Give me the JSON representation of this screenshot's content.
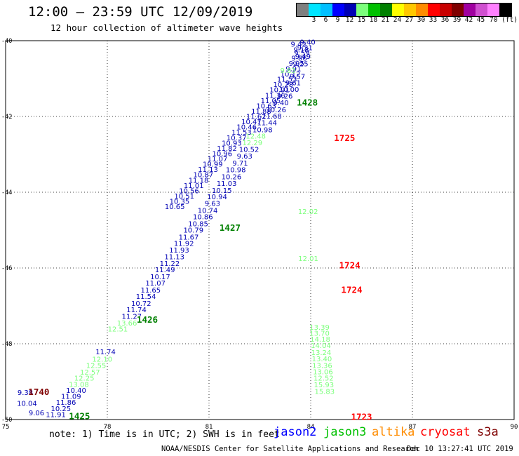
{
  "header": {
    "title": "12:00 – 23:59 UTC 12/09/2019",
    "subtitle": "12 hour collection of altimeter wave heights"
  },
  "legend": {
    "colors": [
      "#7f7f7f",
      "#00e5ff",
      "#00bfff",
      "#0000ff",
      "#0000b4",
      "#7cff7c",
      "#00c000",
      "#008000",
      "#ffff00",
      "#ffc800",
      "#ff8c00",
      "#ff0000",
      "#c80000",
      "#7f0000",
      "#a000a0",
      "#d050d0",
      "#ff80ff",
      "#000000"
    ],
    "labels": [
      "3",
      "6",
      "9",
      "12",
      "15",
      "18",
      "21",
      "24",
      "27",
      "30",
      "33",
      "36",
      "39",
      "42",
      "45",
      "70 (ft)"
    ]
  },
  "chart_data": {
    "type": "scatter",
    "xlim": [
      75,
      90
    ],
    "ylim": [
      -50,
      -40
    ],
    "x_ticks": [
      "75",
      "78",
      "81",
      "84",
      "87",
      "90"
    ],
    "y_ticks": [
      "-40",
      "-42",
      "-44",
      "-46",
      "-48",
      "-50"
    ],
    "grid": true,
    "point_colors": {
      "jason2": "#0000b4",
      "jason3": "#7cff7c",
      "cryosat": "#ff0000"
    },
    "tracks": [
      {
        "name": "jason2",
        "points": [
          {
            "x": 83.91,
            "y": -40.05,
            "v": "9.40"
          },
          {
            "x": 83.83,
            "y": -40.19,
            "v": "9.31"
          },
          {
            "x": 83.74,
            "y": -40.33,
            "v": "9.59"
          },
          {
            "x": 83.66,
            "y": -40.47,
            "v": "9.86"
          },
          {
            "x": 83.58,
            "y": -40.61,
            "v": "9.95"
          },
          {
            "x": 83.49,
            "y": -40.75,
            "v": "9.91"
          },
          {
            "x": 83.4,
            "y": -40.89,
            "v": "10.12"
          },
          {
            "x": 83.3,
            "y": -41.03,
            "v": "11.53"
          },
          {
            "x": 83.19,
            "y": -41.17,
            "v": "10.28"
          },
          {
            "x": 83.08,
            "y": -41.31,
            "v": "10.91"
          },
          {
            "x": 82.95,
            "y": -41.45,
            "v": "11.36"
          },
          {
            "x": 82.82,
            "y": -41.59,
            "v": "11.05"
          },
          {
            "x": 82.69,
            "y": -41.73,
            "v": "10.63"
          },
          {
            "x": 82.54,
            "y": -41.87,
            "v": "11.88"
          },
          {
            "x": 82.39,
            "y": -42.01,
            "v": "11.62"
          },
          {
            "x": 82.25,
            "y": -42.15,
            "v": "10.47"
          },
          {
            "x": 82.11,
            "y": -42.29,
            "v": "10.46"
          },
          {
            "x": 81.96,
            "y": -42.43,
            "v": "11.53"
          },
          {
            "x": 81.81,
            "y": -42.57,
            "v": "10.37"
          },
          {
            "x": 81.67,
            "y": -42.71,
            "v": "10.93"
          },
          {
            "x": 81.53,
            "y": -42.85,
            "v": "11.82"
          },
          {
            "x": 81.39,
            "y": -42.99,
            "v": "10.96"
          },
          {
            "x": 81.25,
            "y": -43.13,
            "v": "11.07"
          },
          {
            "x": 81.11,
            "y": -43.27,
            "v": "10.99"
          },
          {
            "x": 80.97,
            "y": -43.41,
            "v": "11.13"
          },
          {
            "x": 80.83,
            "y": -43.55,
            "v": "10.87"
          },
          {
            "x": 80.69,
            "y": -43.69,
            "v": "11.18"
          },
          {
            "x": 80.55,
            "y": -43.83,
            "v": "11.01"
          },
          {
            "x": 80.41,
            "y": -43.97,
            "v": "10.56"
          },
          {
            "x": 80.27,
            "y": -44.11,
            "v": "10.51"
          },
          {
            "x": 80.13,
            "y": -44.25,
            "v": "10.35"
          },
          {
            "x": 79.99,
            "y": -44.39,
            "v": "10.65"
          },
          {
            "x": 83.64,
            "y": -40.1,
            "v": "9.42"
          },
          {
            "x": 83.72,
            "y": -40.25,
            "v": "9.18"
          },
          {
            "x": 83.77,
            "y": -40.43,
            "v": "9.49"
          },
          {
            "x": 83.7,
            "y": -40.62,
            "v": "9.25"
          },
          {
            "x": 83.61,
            "y": -40.95,
            "v": "9.57"
          },
          {
            "x": 83.48,
            "y": -41.12,
            "v": "9.61"
          },
          {
            "x": 83.36,
            "y": -41.3,
            "v": "10.00"
          },
          {
            "x": 83.24,
            "y": -41.47,
            "v": "9.26"
          },
          {
            "x": 83.12,
            "y": -41.65,
            "v": "9.40"
          },
          {
            "x": 82.98,
            "y": -41.83,
            "v": "10.26"
          },
          {
            "x": 82.85,
            "y": -42.0,
            "v": "11.68"
          },
          {
            "x": 82.71,
            "y": -42.18,
            "v": "11.44"
          },
          {
            "x": 82.58,
            "y": -42.36,
            "v": "10.98"
          },
          {
            "x": 82.18,
            "y": -42.88,
            "v": "10.52"
          },
          {
            "x": 82.05,
            "y": -43.06,
            "v": "9.63"
          },
          {
            "x": 81.92,
            "y": -43.24,
            "v": "9.71"
          },
          {
            "x": 81.79,
            "y": -43.42,
            "v": "10.98"
          },
          {
            "x": 81.66,
            "y": -43.6,
            "v": "10.26"
          },
          {
            "x": 81.52,
            "y": -43.78,
            "v": "11.03"
          },
          {
            "x": 81.38,
            "y": -43.96,
            "v": "10.15"
          },
          {
            "x": 81.24,
            "y": -44.13,
            "v": "10.94"
          },
          {
            "x": 81.1,
            "y": -44.31,
            "v": "9.63"
          },
          {
            "x": 80.96,
            "y": -44.49,
            "v": "10.74"
          },
          {
            "x": 80.82,
            "y": -44.66,
            "v": "10.86"
          },
          {
            "x": 80.68,
            "y": -44.84,
            "v": "10.85"
          },
          {
            "x": 80.54,
            "y": -45.01,
            "v": "10.79"
          },
          {
            "x": 80.4,
            "y": -45.19,
            "v": "11.67"
          },
          {
            "x": 80.26,
            "y": -45.36,
            "v": "11.92"
          },
          {
            "x": 80.12,
            "y": -45.54,
            "v": "11.93"
          },
          {
            "x": 79.98,
            "y": -45.71,
            "v": "11.13"
          },
          {
            "x": 79.84,
            "y": -45.89,
            "v": "11.22"
          },
          {
            "x": 79.7,
            "y": -46.06,
            "v": "11.49"
          },
          {
            "x": 79.56,
            "y": -46.24,
            "v": "10.17"
          },
          {
            "x": 79.42,
            "y": -46.41,
            "v": "11.07"
          },
          {
            "x": 79.28,
            "y": -46.59,
            "v": "11.65"
          },
          {
            "x": 79.14,
            "y": -46.76,
            "v": "11.54"
          },
          {
            "x": 79.0,
            "y": -46.94,
            "v": "10.72"
          },
          {
            "x": 78.86,
            "y": -47.11,
            "v": "11.74"
          },
          {
            "x": 78.72,
            "y": -47.29,
            "v": "11.27"
          },
          {
            "x": 77.95,
            "y": -48.22,
            "v": "11.74"
          },
          {
            "x": 77.08,
            "y": -49.24,
            "v": "10.40"
          },
          {
            "x": 76.93,
            "y": -49.4,
            "v": "11.09"
          },
          {
            "x": 76.78,
            "y": -49.56,
            "v": "11.86"
          },
          {
            "x": 76.63,
            "y": -49.72,
            "v": "10.25"
          },
          {
            "x": 76.48,
            "y": -49.88,
            "v": "11.91"
          },
          {
            "x": 75.58,
            "y": -49.3,
            "v": "9.38"
          },
          {
            "x": 75.63,
            "y": -49.58,
            "v": "10.04"
          },
          {
            "x": 75.91,
            "y": -49.83,
            "v": "9.06"
          }
        ]
      },
      {
        "name": "jason3",
        "points": [
          {
            "x": 82.38,
            "y": -42.53,
            "v": "12.48"
          },
          {
            "x": 82.28,
            "y": -42.7,
            "v": "12.29"
          },
          {
            "x": 83.33,
            "y": -40.8,
            "v": "9.83"
          },
          {
            "x": 83.92,
            "y": -44.52,
            "v": "12.02"
          },
          {
            "x": 83.93,
            "y": -45.76,
            "v": "12.01"
          },
          {
            "x": 78.58,
            "y": -47.46,
            "v": "13.66"
          },
          {
            "x": 78.31,
            "y": -47.62,
            "v": "12.51"
          },
          {
            "x": 77.85,
            "y": -48.42,
            "v": "12.10"
          },
          {
            "x": 77.67,
            "y": -48.58,
            "v": "12.55"
          },
          {
            "x": 77.49,
            "y": -48.76,
            "v": "12.57"
          },
          {
            "x": 77.32,
            "y": -48.92,
            "v": "12.25"
          },
          {
            "x": 77.16,
            "y": -49.08,
            "v": "13.08"
          },
          {
            "x": 84.26,
            "y": -47.57,
            "v": "13.39"
          },
          {
            "x": 84.26,
            "y": -47.73,
            "v": "13.70"
          },
          {
            "x": 84.28,
            "y": -47.89,
            "v": "14.18"
          },
          {
            "x": 84.3,
            "y": -48.06,
            "v": "14.04"
          },
          {
            "x": 84.31,
            "y": -48.24,
            "v": "13.24"
          },
          {
            "x": 84.33,
            "y": -48.41,
            "v": "13.40"
          },
          {
            "x": 84.34,
            "y": -48.58,
            "v": "13.36"
          },
          {
            "x": 84.36,
            "y": -48.75,
            "v": "13.06"
          },
          {
            "x": 84.38,
            "y": -48.92,
            "v": "12.52"
          },
          {
            "x": 84.39,
            "y": -49.09,
            "v": "15.93"
          },
          {
            "x": 84.41,
            "y": -49.27,
            "v": "15.83"
          }
        ]
      }
    ],
    "time_labels": [
      {
        "x": 83.9,
        "y": -41.65,
        "t": "1428",
        "c": "#008000"
      },
      {
        "x": 81.62,
        "y": -44.95,
        "t": "1427",
        "c": "#008000"
      },
      {
        "x": 79.18,
        "y": -47.38,
        "t": "1426",
        "c": "#008000"
      },
      {
        "x": 77.18,
        "y": -49.93,
        "t": "1425",
        "c": "#008000"
      },
      {
        "x": 75.98,
        "y": -49.29,
        "t": "1740",
        "c": "#7f0000"
      },
      {
        "x": 85.0,
        "y": -42.58,
        "t": "1725",
        "c": "#ff0000"
      },
      {
        "x": 85.15,
        "y": -45.94,
        "t": "1724",
        "c": "#ff0000"
      },
      {
        "x": 85.21,
        "y": -46.59,
        "t": "1724",
        "c": "#ff0000"
      },
      {
        "x": 85.5,
        "y": -49.94,
        "t": "1723",
        "c": "#ff0000"
      }
    ]
  },
  "footer": {
    "note": "note: 1) Time is in UTC; 2) SWH is in feet",
    "satellites": [
      {
        "name": "jason2",
        "color": "#0000ff"
      },
      {
        "name": "jason3",
        "color": "#00c000"
      },
      {
        "name": "altika",
        "color": "#ff8c00"
      },
      {
        "name": "cryosat",
        "color": "#ff0000"
      },
      {
        "name": "s3a",
        "color": "#7f0000"
      }
    ],
    "credit": "NOAA/NESDIS Center for Satellite Applications and Research",
    "timestamp": "Dec 10 13:27:41 UTC 2019"
  }
}
